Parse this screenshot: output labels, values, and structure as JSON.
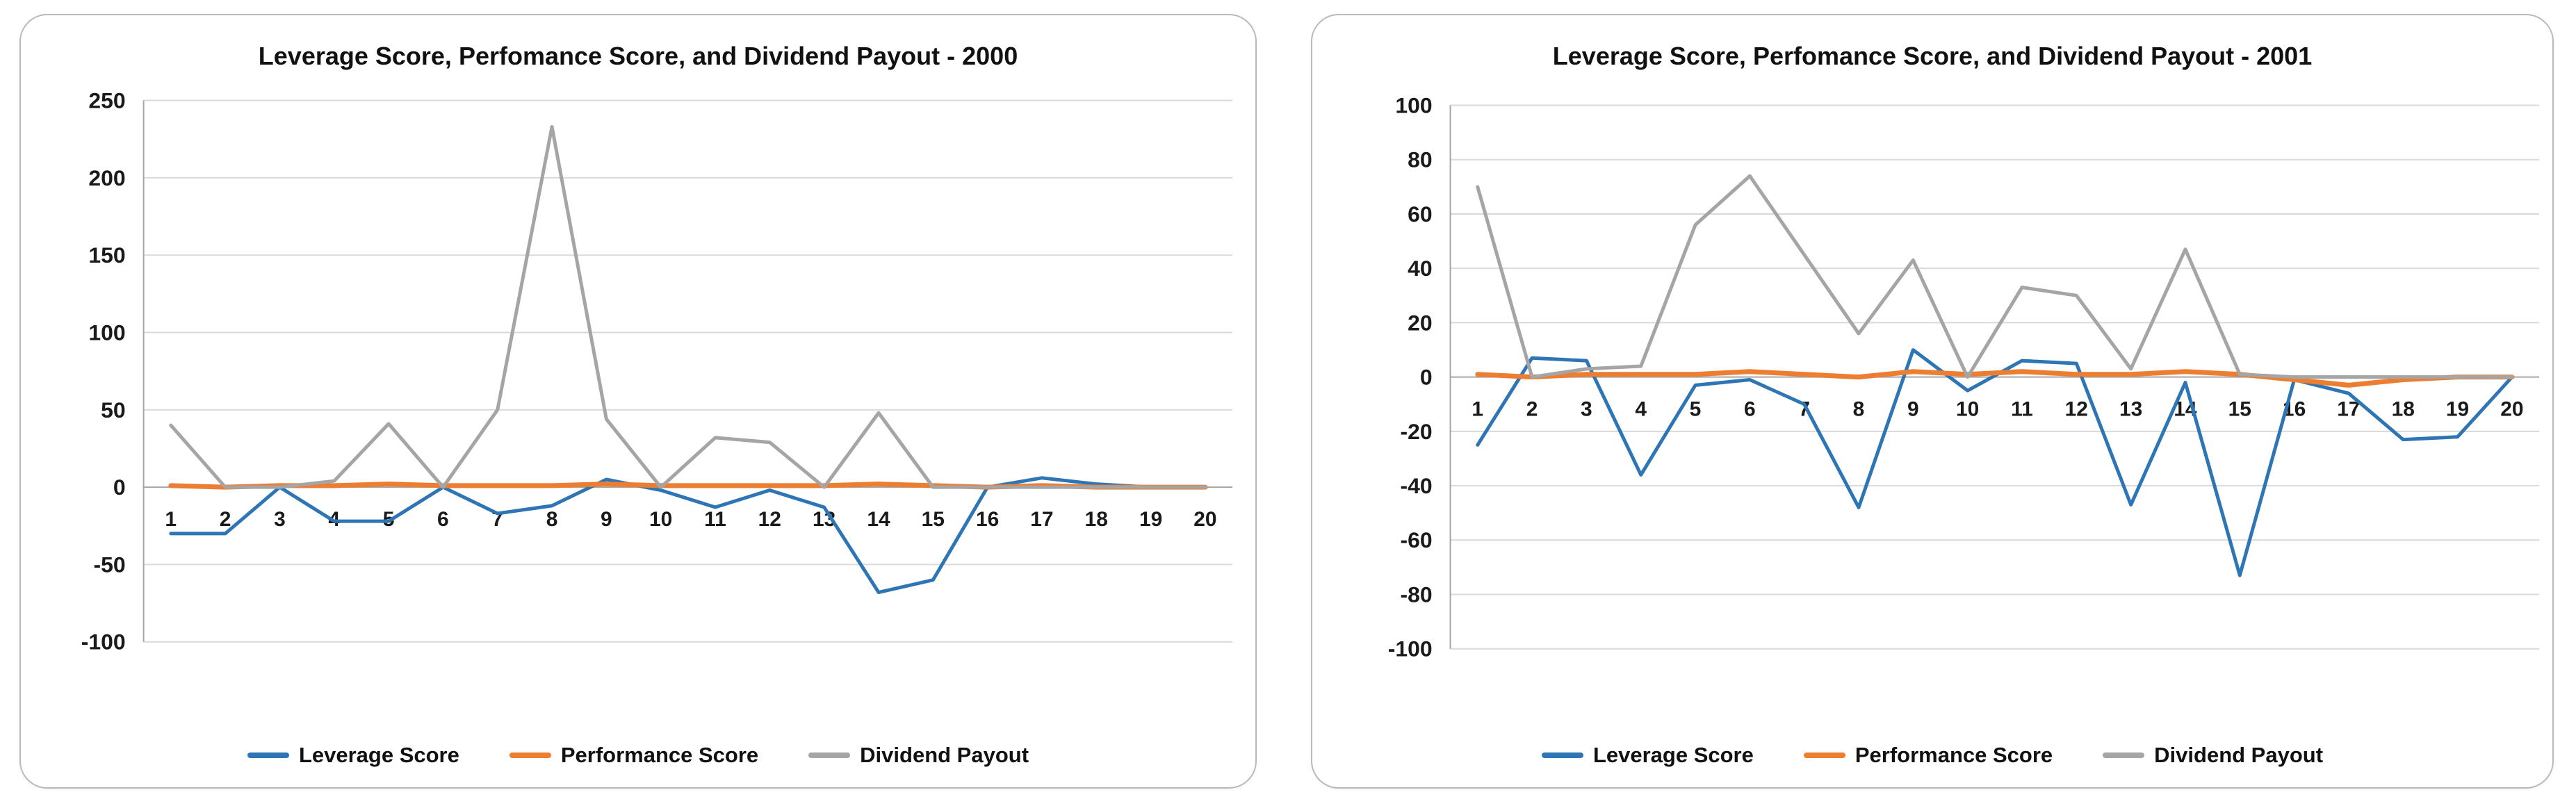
{
  "colors": {
    "grid": "#d9d9d9",
    "zero_axis": "#a6a6a6",
    "axis_line": "#a6a6a6",
    "label_text": "#1a1a1a",
    "series_blue": "#2E75B6",
    "series_orange": "#ED7D31",
    "series_gray": "#A5A5A5"
  },
  "chart_data": [
    {
      "type": "line",
      "title": "Leverage Score, Perfomance Score, and Dividend Payout - 2000",
      "categories": [
        "1",
        "2",
        "3",
        "4",
        "5",
        "6",
        "7",
        "8",
        "9",
        "10",
        "11",
        "12",
        "13",
        "14",
        "15",
        "16",
        "17",
        "18",
        "19",
        "20"
      ],
      "series": [
        {
          "name": "Leverage Score",
          "color": "#2E75B6",
          "values": [
            -30,
            -30,
            0,
            -22,
            -22,
            0,
            -17,
            -12,
            5,
            -2,
            -13,
            -2,
            -13,
            -68,
            -60,
            0,
            6,
            2,
            0,
            0
          ]
        },
        {
          "name": "Performance Score",
          "color": "#ED7D31",
          "values": [
            1,
            0,
            1,
            1,
            2,
            1,
            1,
            1,
            2,
            1,
            1,
            1,
            1,
            2,
            1,
            0,
            1,
            0,
            0,
            0
          ]
        },
        {
          "name": "Dividend Payout",
          "color": "#A5A5A5",
          "values": [
            40,
            0,
            0,
            4,
            41,
            0,
            50,
            233,
            44,
            0,
            32,
            29,
            0,
            48,
            0,
            0,
            0,
            0,
            0,
            0
          ]
        }
      ],
      "xlabel": "",
      "ylabel": "",
      "ylim": [
        -100,
        250
      ],
      "yticks": [
        250,
        200,
        150,
        100,
        50,
        0,
        -50,
        -100
      ],
      "grid": true,
      "legend_position": "bottom"
    },
    {
      "type": "line",
      "title": "Leverage Score, Perfomance Score, and Dividend Payout - 2001",
      "categories": [
        "1",
        "2",
        "3",
        "4",
        "5",
        "6",
        "7",
        "8",
        "9",
        "10",
        "11",
        "12",
        "13",
        "14",
        "15",
        "16",
        "17",
        "18",
        "19",
        "20"
      ],
      "series": [
        {
          "name": "Leverage Score",
          "color": "#2E75B6",
          "values": [
            -25,
            7,
            6,
            -36,
            -3,
            -1,
            -10,
            -48,
            10,
            -5,
            6,
            5,
            -47,
            -2,
            -73,
            -1,
            -6,
            -23,
            -22,
            0
          ]
        },
        {
          "name": "Performance Score",
          "color": "#ED7D31",
          "values": [
            1,
            0,
            1,
            1,
            1,
            2,
            1,
            0,
            2,
            1,
            2,
            1,
            1,
            2,
            1,
            -1,
            -3,
            -1,
            0,
            0
          ]
        },
        {
          "name": "Dividend Payout",
          "color": "#A5A5A5",
          "values": [
            70,
            0,
            3,
            4,
            56,
            74,
            45,
            16,
            43,
            0,
            33,
            30,
            3,
            47,
            1,
            0,
            0,
            0,
            0,
            0
          ]
        }
      ],
      "xlabel": "",
      "ylabel": "",
      "ylim": [
        -100,
        100
      ],
      "yticks": [
        100,
        80,
        60,
        40,
        20,
        0,
        -20,
        -40,
        -60,
        -80,
        -100
      ],
      "grid": true,
      "legend_position": "bottom"
    }
  ]
}
